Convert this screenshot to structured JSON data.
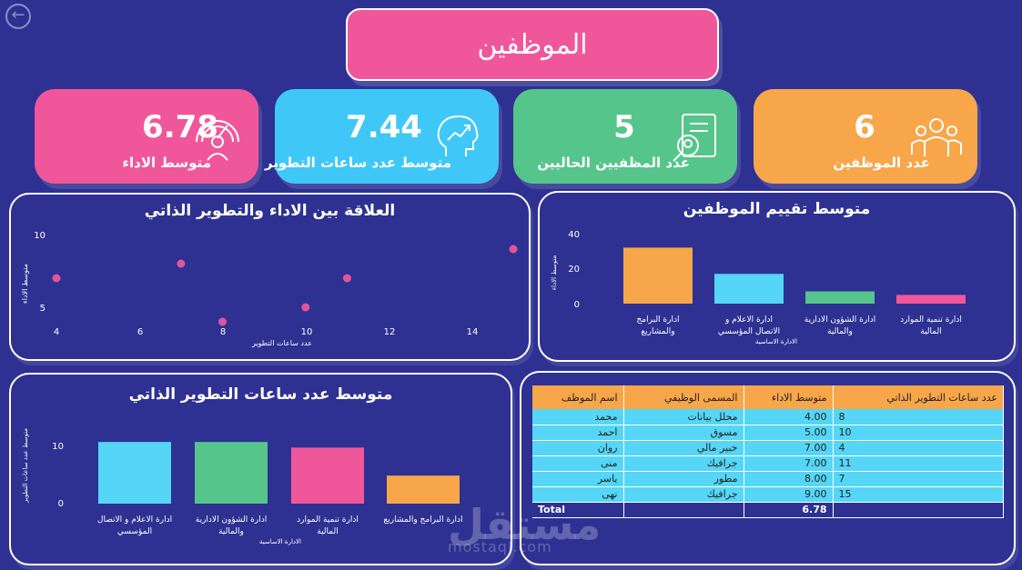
{
  "header": {
    "title": "الموظفين",
    "back_icon": "arrow-left-icon"
  },
  "kpis": [
    {
      "value": "6.78",
      "label": "متوسط الاداء",
      "icon": "gauge-icon",
      "color": "#f0579a"
    },
    {
      "value": "7.44",
      "label": "متوسط عدد ساعات التطوير",
      "icon": "brain-growth-icon",
      "color": "#3fc8f7"
    },
    {
      "value": "5",
      "label": "عدد المظفيين الحاليين",
      "icon": "document-search-icon",
      "color": "#55c58b"
    },
    {
      "value": "6",
      "label": "عدد الموظفين",
      "icon": "team-icon",
      "color": "#f7a64a"
    }
  ],
  "scatter": {
    "title": "العلاقة بين الاداء والتطوير الذاتي",
    "xlabel": "عدد ساعات التطوير",
    "ylabel": "متوسط الاداء",
    "x_ticks": [
      "4",
      "6",
      "8",
      "10",
      "12",
      "14"
    ],
    "y_ticks": [
      "10",
      "5"
    ]
  },
  "avg_rating": {
    "title": "متوسط تقييم الموظفين",
    "ylabel": "متوسط الاداء",
    "xlabel": "الادارة الاساسية",
    "y_ticks": [
      "40",
      "20",
      "0"
    ],
    "categories": [
      {
        "line1": "ادارة البرامج",
        "line2": "والمشاريع"
      },
      {
        "line1": "ادارة الاعلام و",
        "line2": "الاتصال المؤسسي"
      },
      {
        "line1": "ادارة الشؤون الادارية",
        "line2": "والمالية"
      },
      {
        "line1": "ادارة تنمية الموارد",
        "line2": "المالية"
      }
    ]
  },
  "avg_hours": {
    "title": "متوسط عدد ساعات التطوير الذاتي",
    "ylabel": "متوسط عدد ساعات التطوير",
    "xlabel": "الادارة الاساسية",
    "y_ticks": [
      "10",
      "0"
    ],
    "categories": [
      {
        "line1": "ادارة الاعلام و الاتصال",
        "line2": "المؤسسي"
      },
      {
        "line1": "ادارة الشؤون الادارية",
        "line2": "والمالية"
      },
      {
        "line1": "ادارة تنمية الموارد",
        "line2": "المالية"
      },
      {
        "line1": "ادارة البرامج والمشاريع",
        "line2": ""
      }
    ]
  },
  "table": {
    "headers": [
      "اسم الموظف",
      "المسمى الوظيفي",
      "متوسط الاداء",
      "عدد ساعات التطوير الذاتي"
    ],
    "rows": [
      [
        "محمد",
        "محلل بيانات",
        "4.00",
        "8"
      ],
      [
        "احمد",
        "مسوق",
        "5.00",
        "10"
      ],
      [
        "روان",
        "خبير مالي",
        "7.00",
        "4"
      ],
      [
        "منى",
        "جرافيك",
        "7.00",
        "11"
      ],
      [
        "ياسر",
        "مطور",
        "8.00",
        "7"
      ],
      [
        "نهى",
        "جرافيك",
        "9.00",
        "15"
      ]
    ],
    "total_label": "Total",
    "total_value": "6.78"
  },
  "watermark": {
    "text": "مستقل",
    "sub": "mostaql.com"
  },
  "chart_data": [
    {
      "type": "scatter",
      "title": "العلاقة بين الاداء والتطوير الذاتي",
      "xlabel": "عدد ساعات التطوير",
      "ylabel": "متوسط الاداء",
      "xlim": [
        4,
        15
      ],
      "ylim": [
        4,
        10
      ],
      "points": [
        [
          4,
          7
        ],
        [
          7,
          8
        ],
        [
          8,
          4
        ],
        [
          10,
          5
        ],
        [
          11,
          7
        ],
        [
          15,
          9
        ]
      ],
      "color": "#e0559a"
    },
    {
      "type": "bar",
      "title": "متوسط تقييم الموظفين",
      "xlabel": "الادارة الاساسية",
      "ylabel": "متوسط الاداء",
      "ylim": [
        0,
        40
      ],
      "categories": [
        "ادارة البرامج والمشاريع",
        "ادارة الاعلام و الاتصال المؤسسي",
        "ادارة الشؤون الادارية والمالية",
        "ادارة تنمية الموارد المالية"
      ],
      "values": [
        32,
        17,
        7,
        5
      ],
      "colors": [
        "#f7a64a",
        "#55d6f6",
        "#55c58b",
        "#f0579a"
      ]
    },
    {
      "type": "bar",
      "title": "متوسط عدد ساعات التطوير الذاتي",
      "xlabel": "الادارة الاساسية",
      "ylabel": "متوسط عدد ساعات التطوير",
      "ylim": [
        0,
        12
      ],
      "categories": [
        "ادارة الاعلام و الاتصال المؤسسي",
        "ادارة الشؤون الادارية والمالية",
        "ادارة تنمية الموارد المالية",
        "ادارة البرامج والمشاريع"
      ],
      "values": [
        11,
        11,
        10,
        5
      ],
      "colors": [
        "#55d6f6",
        "#55c58b",
        "#f0579a",
        "#f7a64a"
      ]
    }
  ]
}
